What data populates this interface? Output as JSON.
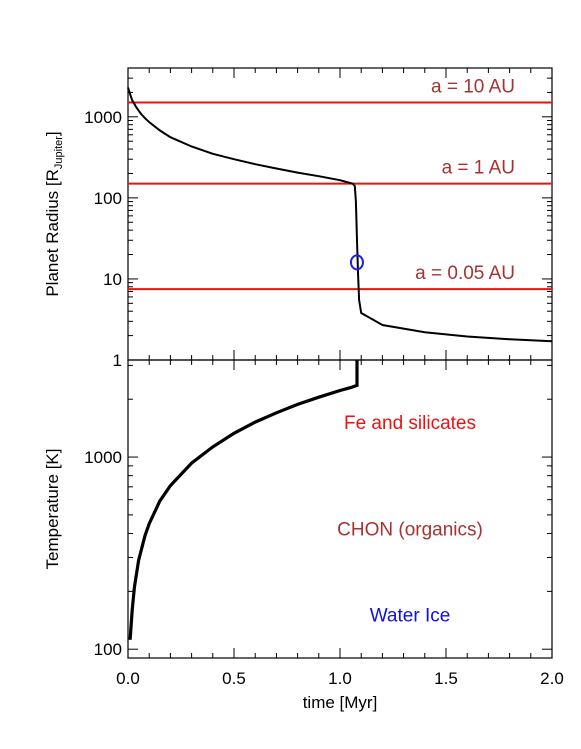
{
  "colors": {
    "line_red": "#ee1111",
    "label_darkred": "#a83232",
    "fe_red": "#ee1111",
    "water_blue": "#1010e0",
    "marker_blue": "#2020e0",
    "curve": "#000000"
  },
  "chart_data": [
    {
      "type": "line",
      "ylabel_main": "Planet Radius [R",
      "ylabel_sub": "Jupiter",
      "ylabel_end": "]",
      "yscale": "log",
      "xlim": [
        0.0,
        2.0
      ],
      "ylim": [
        1,
        4000
      ],
      "ytick_labels": [
        "1",
        "10",
        "100",
        "1000"
      ],
      "yticks": [
        1,
        10,
        100,
        1000
      ],
      "hlines": [
        {
          "label": "a = 10 AU",
          "y": 1500
        },
        {
          "label": "a = 1 AU",
          "y": 150
        },
        {
          "label": "a = 0.05 AU",
          "y": 7.5
        }
      ],
      "marker": {
        "x": 1.08,
        "y": 16,
        "symbol": "O"
      },
      "series": [
        {
          "x": [
            0.0,
            0.01,
            0.02,
            0.04,
            0.06,
            0.08,
            0.1,
            0.15,
            0.2,
            0.3,
            0.4,
            0.5,
            0.6,
            0.7,
            0.8,
            0.9,
            1.0,
            1.06,
            1.07,
            1.075,
            1.08,
            1.085,
            1.09,
            1.1,
            1.2,
            1.4,
            1.6,
            1.8,
            2.0
          ],
          "y": [
            2300,
            1900,
            1600,
            1300,
            1100,
            960,
            860,
            680,
            560,
            430,
            350,
            300,
            260,
            230,
            205,
            185,
            165,
            150,
            140,
            90,
            30,
            12,
            5.5,
            3.8,
            2.7,
            2.2,
            1.95,
            1.8,
            1.7
          ]
        }
      ]
    },
    {
      "type": "line",
      "ylabel": "Temperature [K]",
      "xlabel": "time [Myr]",
      "yscale": "log",
      "xlim": [
        0.0,
        2.0
      ],
      "ylim": [
        90,
        3200
      ],
      "ytick_labels": [
        "100",
        "1000"
      ],
      "yticks": [
        100,
        1000
      ],
      "xtick_labels": [
        "0.0",
        "0.5",
        "1.0",
        "1.5",
        "2.0"
      ],
      "xticks": [
        0.0,
        0.5,
        1.0,
        1.5,
        2.0
      ],
      "annotations": [
        {
          "text": "Fe and silicates",
          "color_key": "fe_red"
        },
        {
          "text": "CHON (organics)",
          "color_key": "label_darkred"
        },
        {
          "text": "Water Ice",
          "color_key": "water_blue"
        }
      ],
      "annotation_y": [
        1500,
        420,
        150
      ],
      "series": [
        {
          "x": [
            0.01,
            0.02,
            0.03,
            0.05,
            0.08,
            0.1,
            0.15,
            0.2,
            0.3,
            0.4,
            0.5,
            0.6,
            0.7,
            0.8,
            0.9,
            1.0,
            1.05,
            1.08,
            1.08
          ],
          "y": [
            112,
            160,
            210,
            290,
            390,
            450,
            590,
            710,
            930,
            1130,
            1330,
            1520,
            1700,
            1880,
            2050,
            2220,
            2300,
            2360,
            3200
          ]
        }
      ]
    }
  ]
}
